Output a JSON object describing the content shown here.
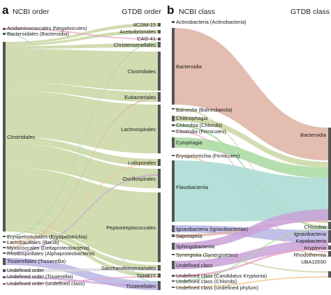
{
  "panel_a": {
    "letter": "a",
    "left_title": "NCBI order",
    "right_title": "GTDB order",
    "left_nodes": [
      {
        "label": "Acidaminococcales (Negativicutes)"
      },
      {
        "label": "Bacteroidales (Bacteroidia)"
      },
      {
        "label": "Clostridiales"
      },
      {
        "label": "Erysipelotrichales (Erysipelotrichia)"
      },
      {
        "label": "Lactobacillales (Bacilli)"
      },
      {
        "label": "Myxococcales (Deltaproteobacteria)"
      },
      {
        "label": "Rhodospirillales (Alphaproteobacteria)"
      },
      {
        "label": "Tissierellales (Tissierellia)"
      },
      {
        "label": "Undefined order"
      },
      {
        "label": "Undefined order (Tissierellia)"
      },
      {
        "label": "Undefined order (undefined class)"
      }
    ],
    "right_nodes": [
      {
        "label": "4C28d-15"
      },
      {
        "label": "Acetivibrionales"
      },
      {
        "label": "CAG-41"
      },
      {
        "label": "Christensenellales"
      },
      {
        "label": "Clostridiales"
      },
      {
        "label": "Eubacteriales"
      },
      {
        "label": "Lachnospirales"
      },
      {
        "label": "Lutisporales"
      },
      {
        "label": "Oscillospirales"
      },
      {
        "label": "Peptostreptococcales"
      },
      {
        "label": "Saccharofermentanales"
      },
      {
        "label": "TANB77"
      },
      {
        "label": "Tissierellales"
      }
    ]
  },
  "panel_b": {
    "letter": "b",
    "left_title": "NCBI class",
    "right_title": "GTDB class",
    "left_nodes": [
      {
        "label": "Actinobacteria (Actinobacteria)"
      },
      {
        "label": "Bacteroidia"
      },
      {
        "label": "Balneolia (Balneolaeota)"
      },
      {
        "label": "Chitinophagia"
      },
      {
        "label": "Chlorobia (Chlorobi)"
      },
      {
        "label": "Clostridia (Firmicutes)"
      },
      {
        "label": "Cytophagia"
      },
      {
        "label": "Erysipelotrichia (Firmicutes)"
      },
      {
        "label": "Flavobacteriia"
      },
      {
        "label": "Ignavibacteria (Ignavibacteriae)"
      },
      {
        "label": "Saprospiria"
      },
      {
        "label": "Sphingobacteriia"
      },
      {
        "label": "Synergistia (Synergistetes)"
      },
      {
        "label": "Undefined class"
      },
      {
        "label": "Undefined class (Candidatus Kryptonia)"
      },
      {
        "label": "Undefined class (Chlorobi)"
      },
      {
        "label": "Undefined class (undefined phylum)"
      }
    ],
    "right_nodes": [
      {
        "label": "Bacteroidia"
      },
      {
        "label": "Chlorobia"
      },
      {
        "label": "Ignavibacteria"
      },
      {
        "label": "Kapabacteria"
      },
      {
        "label": "Kryptonia"
      },
      {
        "label": "Rhodothermia"
      },
      {
        "label": "UBA10030"
      }
    ]
  },
  "colors": {
    "node_bar": "#555555",
    "flow_olive": "#c9d6a3",
    "flow_salmon": "#deb2a2",
    "flow_teal": "#a8dbd2",
    "flow_lavender": "#b7b4e4",
    "flow_purple": "#c9a1d8",
    "flow_green": "#a8d9a0",
    "flow_pink": "#e7a4c0",
    "flow_orange": "#f1c690",
    "flow_grey": "#d8d8d8"
  }
}
